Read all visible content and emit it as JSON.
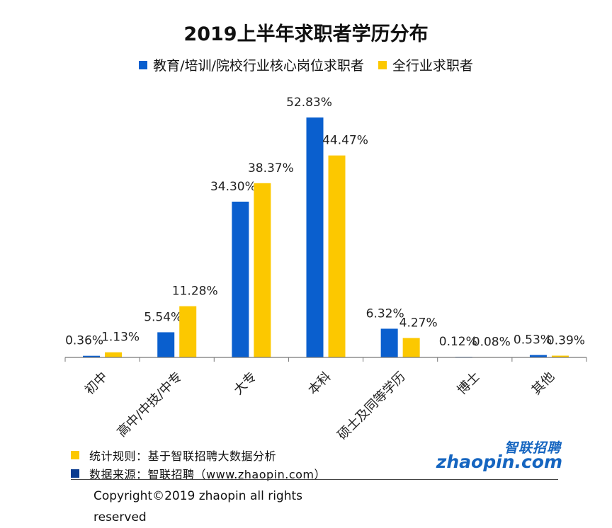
{
  "chart_data": {
    "type": "bar",
    "title": "2019上半年求职者学历分布",
    "categories": [
      "初中",
      "高中/中技/中专",
      "大专",
      "本科",
      "硕士及同等学历",
      "博士",
      "其他"
    ],
    "series": [
      {
        "name": "教育/培训/院校行业核心岗位求职者",
        "color": "#0a5fce",
        "values": [
          0.36,
          5.54,
          34.3,
          52.83,
          6.32,
          0.12,
          0.53
        ],
        "labels": [
          "0.36%",
          "5.54%",
          "34.30%",
          "52.83%",
          "6.32%",
          "0.12%",
          "0.53%"
        ]
      },
      {
        "name": "全行业求职者",
        "color": "#fcc800",
        "values": [
          1.13,
          11.28,
          38.37,
          44.47,
          4.27,
          0.08,
          0.39
        ],
        "labels": [
          "1.13%",
          "11.28%",
          "38.37%",
          "44.47%",
          "4.27%",
          "0.08%",
          "0.39%"
        ]
      }
    ],
    "ylim": [
      0,
      53
    ],
    "xlabel": "",
    "ylabel": "",
    "grid": false,
    "legend": "top-center"
  },
  "notes": [
    {
      "text": "统计规则：基于智联招聘大数据分析",
      "color": "#fcc800"
    },
    {
      "text": "数据来源：智联招聘（www.zhaopin.com）",
      "color": "#0a3b8f"
    }
  ],
  "copyright": "Copyright©2019 zhaopin all rights reserved",
  "logo": {
    "cn": "智联招聘",
    "en": "zhaopin.com"
  }
}
